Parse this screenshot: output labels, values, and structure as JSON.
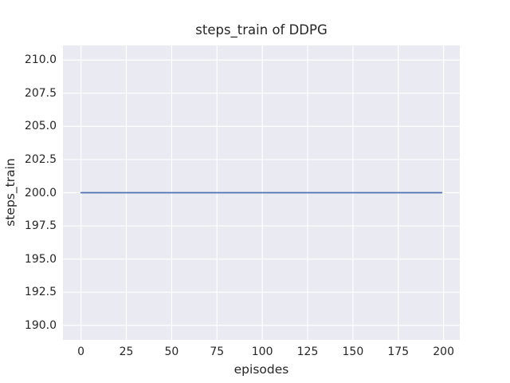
{
  "figure": {
    "background": "#ffffff"
  },
  "chart_data": {
    "type": "line",
    "title": "steps_train of DDPG",
    "xlabel": "episodes",
    "ylabel": "steps_train",
    "xlim": [
      -9.95,
      208.95
    ],
    "ylim": [
      188.9,
      211.1
    ],
    "grid": true,
    "legend": "none",
    "x_ticks": {
      "values": [
        0,
        25,
        50,
        75,
        100,
        125,
        150,
        175,
        200
      ],
      "labels": [
        "0",
        "25",
        "50",
        "75",
        "100",
        "125",
        "150",
        "175",
        "200"
      ]
    },
    "y_ticks": {
      "values": [
        190.0,
        192.5,
        195.0,
        197.5,
        200.0,
        202.5,
        205.0,
        207.5,
        210.0
      ],
      "labels": [
        "190.0",
        "192.5",
        "195.0",
        "197.5",
        "200.0",
        "202.5",
        "205.0",
        "207.5",
        "210.0"
      ]
    },
    "series": [
      {
        "name": "steps_train",
        "constant": true,
        "x": [
          0,
          199
        ],
        "y": [
          200,
          200
        ],
        "color": "#4c72b0",
        "line_width": 1.8
      }
    ],
    "colors": {
      "plot_background": "#eaeaf2",
      "gridline": "#ffffff",
      "text": "#262626"
    }
  }
}
